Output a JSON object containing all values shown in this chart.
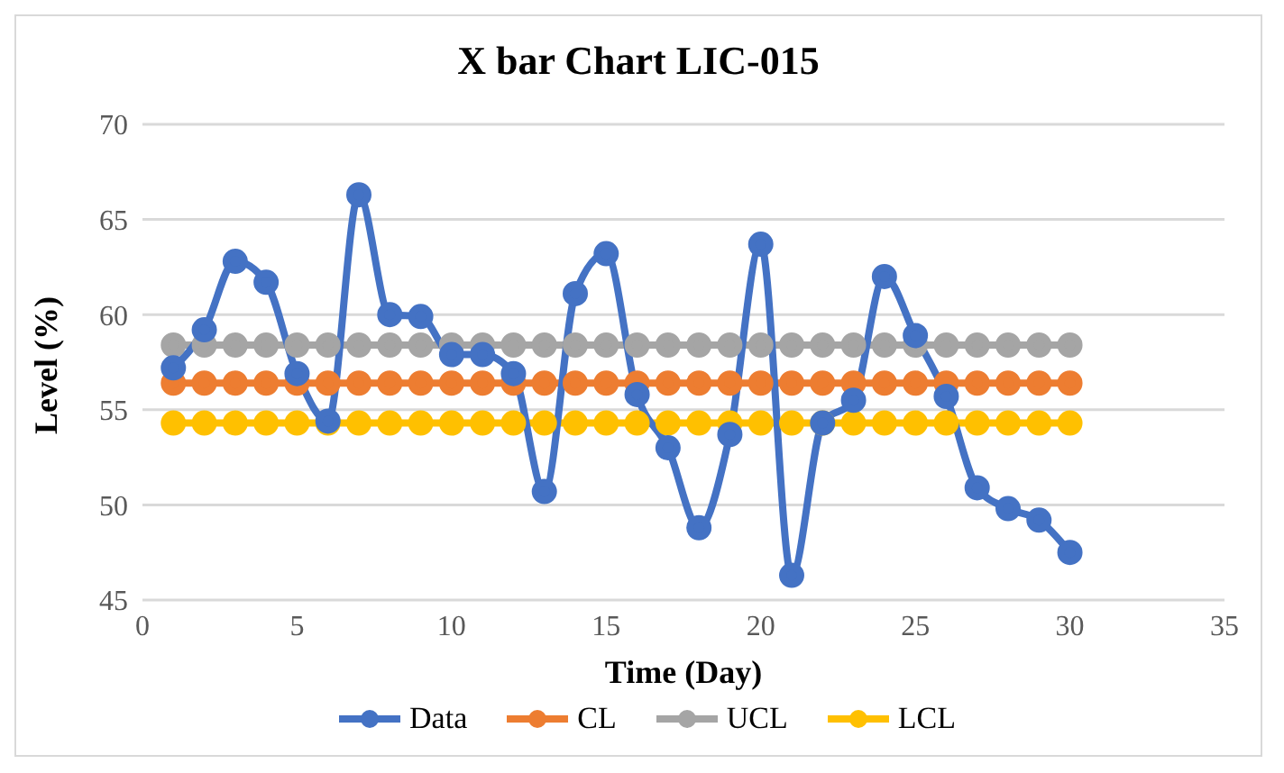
{
  "chart_data": {
    "type": "line",
    "title": "X bar Chart LIC-015",
    "xlabel": "Time (Day)",
    "ylabel": "Level (%)",
    "x": [
      1,
      2,
      3,
      4,
      5,
      6,
      7,
      8,
      9,
      10,
      11,
      12,
      13,
      14,
      15,
      16,
      17,
      18,
      19,
      20,
      21,
      22,
      23,
      24,
      25,
      26,
      27,
      28,
      29,
      30
    ],
    "series": [
      {
        "name": "Data",
        "color": "#4472c4",
        "values": [
          57.2,
          59.2,
          62.8,
          61.7,
          56.9,
          54.4,
          66.3,
          60,
          59.9,
          57.9,
          57.9,
          56.9,
          50.7,
          61.1,
          63.2,
          55.8,
          53,
          48.8,
          53.7,
          63.7,
          46.3,
          54.3,
          55.5,
          62,
          58.9,
          55.7,
          50.9,
          49.8,
          49.2,
          47.5
        ]
      },
      {
        "name": "CL",
        "color": "#ed7d31",
        "values": [
          56.4,
          56.4,
          56.4,
          56.4,
          56.4,
          56.4,
          56.4,
          56.4,
          56.4,
          56.4,
          56.4,
          56.4,
          56.4,
          56.4,
          56.4,
          56.4,
          56.4,
          56.4,
          56.4,
          56.4,
          56.4,
          56.4,
          56.4,
          56.4,
          56.4,
          56.4,
          56.4,
          56.4,
          56.4,
          56.4
        ]
      },
      {
        "name": "UCL",
        "color": "#a5a5a5",
        "values": [
          58.4,
          58.4,
          58.4,
          58.4,
          58.4,
          58.4,
          58.4,
          58.4,
          58.4,
          58.4,
          58.4,
          58.4,
          58.4,
          58.4,
          58.4,
          58.4,
          58.4,
          58.4,
          58.4,
          58.4,
          58.4,
          58.4,
          58.4,
          58.4,
          58.4,
          58.4,
          58.4,
          58.4,
          58.4,
          58.4
        ]
      },
      {
        "name": "LCL",
        "color": "#ffc000",
        "values": [
          54.3,
          54.3,
          54.3,
          54.3,
          54.3,
          54.3,
          54.3,
          54.3,
          54.3,
          54.3,
          54.3,
          54.3,
          54.3,
          54.3,
          54.3,
          54.3,
          54.3,
          54.3,
          54.3,
          54.3,
          54.3,
          54.3,
          54.3,
          54.3,
          54.3,
          54.3,
          54.3,
          54.3,
          54.3,
          54.3
        ]
      }
    ],
    "xlim": [
      0,
      35
    ],
    "xticks": [
      0,
      5,
      10,
      15,
      20,
      25,
      30,
      35
    ],
    "ylim": [
      45,
      70
    ],
    "yticks": [
      45,
      50,
      55,
      60,
      65,
      70
    ],
    "grid": "y",
    "legend": "bottom",
    "marker": "circle",
    "line_style": "solid"
  }
}
